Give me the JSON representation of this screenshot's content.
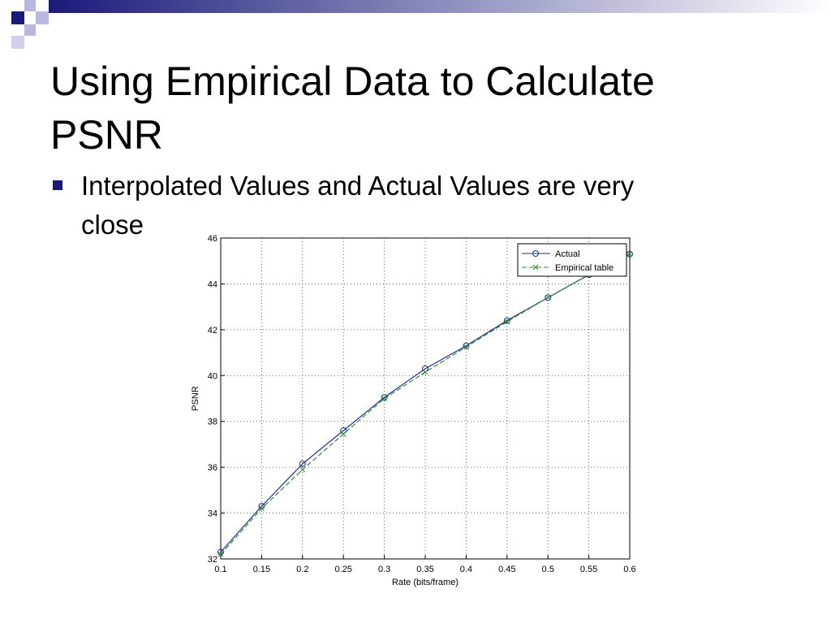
{
  "slide": {
    "title_lines": [
      "Using Empirical Data to Calculate",
      "PSNR"
    ],
    "bullet_lines": [
      "Interpolated Values and Actual Values are very",
      "close"
    ]
  },
  "chart_data": {
    "type": "line",
    "x": [
      0.1,
      0.15,
      0.2,
      0.25,
      0.3,
      0.35,
      0.4,
      0.45,
      0.5,
      0.55,
      0.6
    ],
    "series": [
      {
        "name": "Actual",
        "color": "#1f2f8f",
        "marker": "circle",
        "dash": "solid",
        "values": [
          32.3,
          34.3,
          36.15,
          37.6,
          39.05,
          40.3,
          41.3,
          42.4,
          43.4,
          44.4,
          45.3
        ]
      },
      {
        "name": "Empirical table",
        "color": "#2e8b2e",
        "marker": "x",
        "dash": "dashed",
        "values": [
          32.2,
          34.2,
          35.9,
          37.45,
          39.0,
          40.15,
          41.25,
          42.35,
          43.4,
          44.4,
          45.3
        ]
      }
    ],
    "xlabel": "Rate (bits/frame)",
    "ylabel": "PSNR",
    "xlim": [
      0.1,
      0.6
    ],
    "xticks": [
      0.1,
      0.15,
      0.2,
      0.25,
      0.3,
      0.35,
      0.4,
      0.45,
      0.5,
      0.55,
      0.6
    ],
    "ylim": [
      32,
      46
    ],
    "yticks": [
      32,
      34,
      36,
      38,
      40,
      42,
      44,
      46
    ],
    "grid": true,
    "legend": "upper right"
  }
}
